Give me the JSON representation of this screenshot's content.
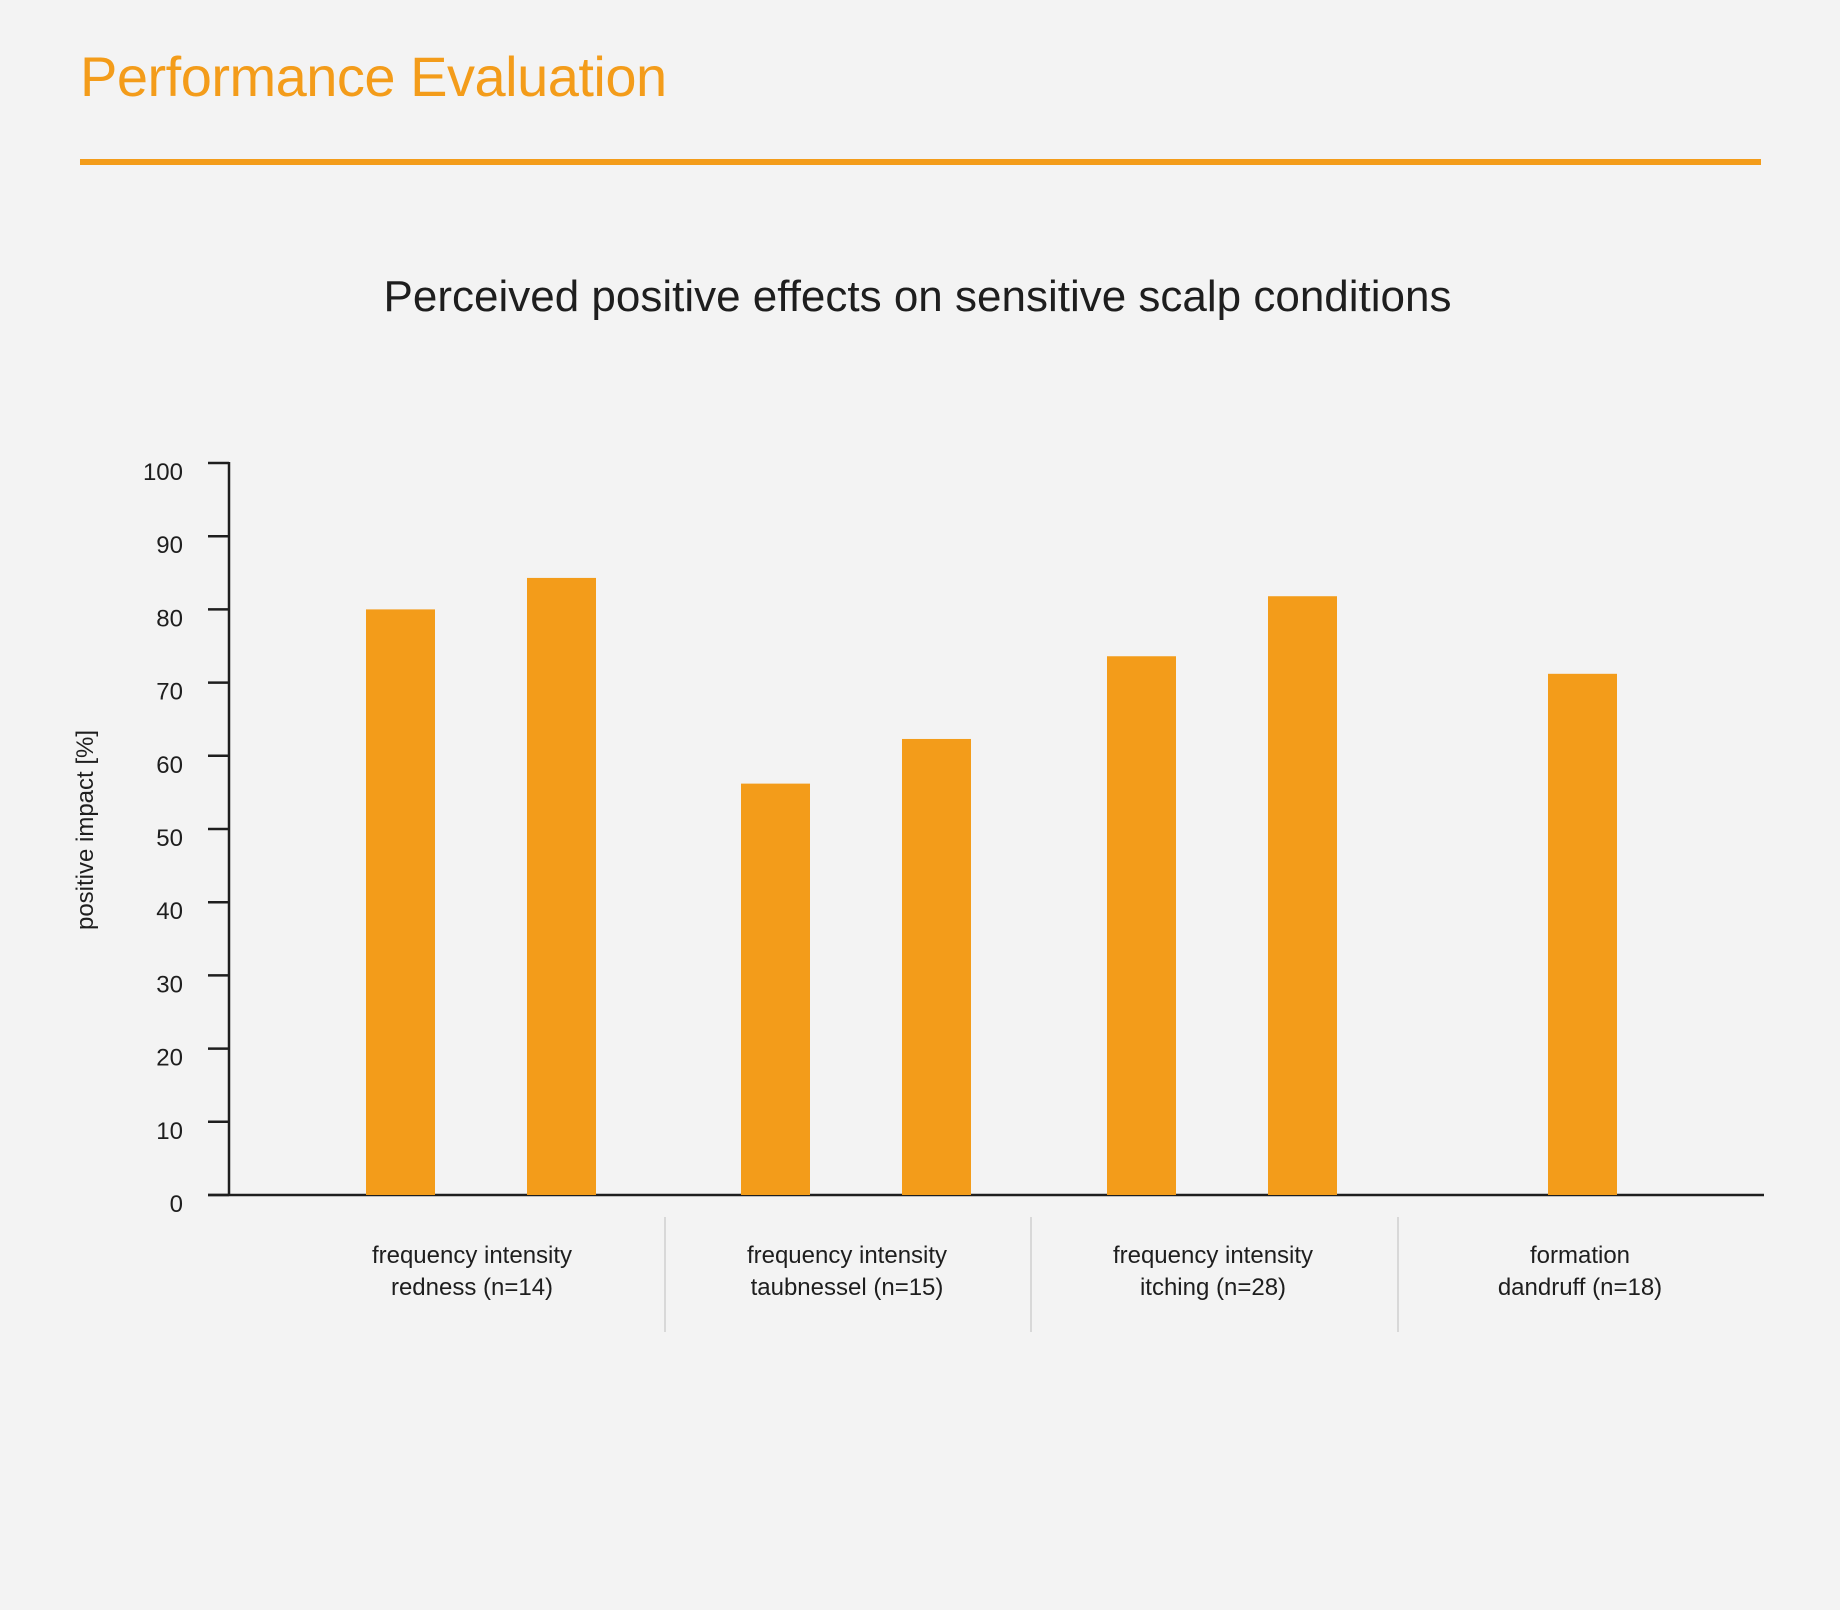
{
  "header": {
    "title": "Performance Evaluation"
  },
  "colors": {
    "accent": "#f39c1a",
    "axis": "#1e1e1e",
    "separator": "#cfcfcf"
  },
  "chart_data": {
    "type": "bar",
    "title": "Perceived positive effects on sensitive scalp conditions",
    "ylabel": "positive impact [%]",
    "ylim": [
      0,
      100
    ],
    "yticks": [
      0,
      10,
      20,
      30,
      40,
      50,
      60,
      70,
      80,
      90,
      100
    ],
    "grid": false,
    "legend": "none",
    "categories": [
      {
        "lines": [
          "frequency intensity",
          "redness (n=14)"
        ],
        "values": [
          80,
          84.3
        ]
      },
      {
        "lines": [
          "frequency intensity",
          "taubnessel (n=15)"
        ],
        "values": [
          56.2,
          62.3
        ]
      },
      {
        "lines": [
          "frequency intensity",
          "itching (n=28)"
        ],
        "values": [
          73.6,
          81.8
        ]
      },
      {
        "lines": [
          "formation",
          "dandruff (n=18)"
        ],
        "values": [
          71.2
        ]
      }
    ]
  }
}
